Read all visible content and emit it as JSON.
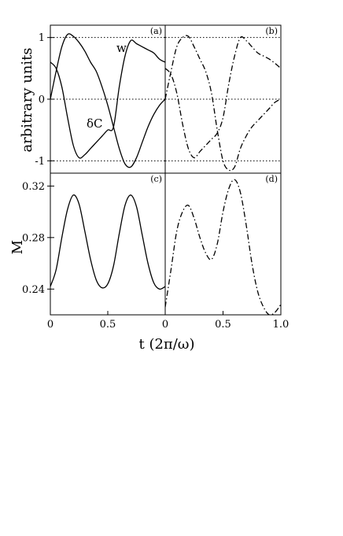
{
  "chart_data": [
    {
      "panel": "(a)",
      "type": "line",
      "ylabel": "arbitrary units",
      "xlim": [
        0,
        1
      ],
      "ylim": [
        -1.2,
        1.2
      ],
      "yticks": [
        "-1",
        "0",
        "1"
      ],
      "reference_lines": [
        1,
        0,
        -1
      ],
      "annotations": [
        "w",
        "δC"
      ],
      "series": [
        {
          "name": "w",
          "style": "solid",
          "x": [
            0,
            0.05,
            0.1,
            0.15,
            0.2,
            0.25,
            0.3,
            0.35,
            0.4,
            0.45,
            0.5,
            0.55,
            0.6,
            0.65,
            0.7,
            0.75,
            0.8,
            0.85,
            0.9,
            0.95,
            1.0
          ],
          "y": [
            0.0,
            0.45,
            0.85,
            1.05,
            1.02,
            0.92,
            0.78,
            0.6,
            0.45,
            0.2,
            -0.1,
            -0.45,
            -0.8,
            -1.05,
            -1.1,
            -0.95,
            -0.7,
            -0.45,
            -0.25,
            -0.1,
            0.0
          ]
        },
        {
          "name": "δC",
          "style": "solid",
          "x": [
            0,
            0.05,
            0.1,
            0.15,
            0.2,
            0.25,
            0.3,
            0.35,
            0.4,
            0.45,
            0.5,
            0.55,
            0.6,
            0.65,
            0.7,
            0.75,
            0.8,
            0.85,
            0.9,
            0.95,
            1.0
          ],
          "y": [
            0.6,
            0.5,
            0.2,
            -0.3,
            -0.75,
            -0.95,
            -0.9,
            -0.8,
            -0.7,
            -0.6,
            -0.5,
            -0.45,
            0.2,
            0.7,
            0.95,
            0.9,
            0.85,
            0.8,
            0.75,
            0.65,
            0.6
          ]
        }
      ]
    },
    {
      "panel": "(b)",
      "type": "line",
      "xlim": [
        0,
        1
      ],
      "ylim": [
        -1.2,
        1.2
      ],
      "reference_lines": [
        1,
        0,
        -1
      ],
      "series": [
        {
          "style": "dashdot",
          "x": [
            0,
            0.05,
            0.1,
            0.15,
            0.2,
            0.25,
            0.3,
            0.35,
            0.4,
            0.45,
            0.5,
            0.55,
            0.6,
            0.65,
            0.7,
            0.75,
            0.8,
            0.85,
            0.9,
            0.95,
            1.0
          ],
          "y": [
            0.0,
            0.45,
            0.85,
            1.0,
            1.02,
            0.85,
            0.65,
            0.45,
            0.1,
            -0.5,
            -1.0,
            -1.15,
            -1.1,
            -0.8,
            -0.6,
            -0.45,
            -0.35,
            -0.25,
            -0.15,
            -0.05,
            0.0
          ]
        },
        {
          "style": "dashdot",
          "x": [
            0,
            0.05,
            0.1,
            0.15,
            0.2,
            0.25,
            0.3,
            0.35,
            0.4,
            0.45,
            0.5,
            0.55,
            0.6,
            0.65,
            0.7,
            0.75,
            0.8,
            0.85,
            0.9,
            0.95,
            1.0
          ],
          "y": [
            0.5,
            0.4,
            0.1,
            -0.4,
            -0.8,
            -0.95,
            -0.85,
            -0.75,
            -0.65,
            -0.55,
            -0.3,
            0.25,
            0.7,
            1.0,
            0.95,
            0.85,
            0.75,
            0.7,
            0.65,
            0.58,
            0.5
          ]
        }
      ]
    },
    {
      "panel": "(c)",
      "type": "line",
      "ylabel": "M",
      "xlabel": "t (2π/ω)",
      "xlim": [
        0,
        1
      ],
      "ylim": [
        0.22,
        0.33
      ],
      "yticks": [
        "0.24",
        "0.28",
        "0.32"
      ],
      "xticks": [
        "0",
        "0.5",
        "1.0"
      ],
      "series": [
        {
          "style": "solid",
          "x": [
            0,
            0.05,
            0.1,
            0.15,
            0.2,
            0.25,
            0.3,
            0.35,
            0.4,
            0.45,
            0.5,
            0.55,
            0.6,
            0.65,
            0.7,
            0.75,
            0.8,
            0.85,
            0.9,
            0.95,
            1.0
          ],
          "y": [
            0.242,
            0.255,
            0.28,
            0.302,
            0.313,
            0.306,
            0.285,
            0.263,
            0.247,
            0.241,
            0.244,
            0.258,
            0.283,
            0.305,
            0.313,
            0.304,
            0.282,
            0.26,
            0.245,
            0.24,
            0.242
          ]
        }
      ]
    },
    {
      "panel": "(d)",
      "type": "line",
      "xlim": [
        0,
        1
      ],
      "ylim": [
        0.22,
        0.33
      ],
      "xticks": [
        "0",
        "0.5",
        "1.0"
      ],
      "series": [
        {
          "style": "dashdot",
          "x": [
            0,
            0.05,
            0.1,
            0.15,
            0.2,
            0.25,
            0.3,
            0.35,
            0.4,
            0.45,
            0.5,
            0.55,
            0.6,
            0.65,
            0.7,
            0.75,
            0.8,
            0.85,
            0.9,
            0.95,
            1.0
          ],
          "y": [
            0.226,
            0.255,
            0.285,
            0.3,
            0.305,
            0.295,
            0.28,
            0.268,
            0.263,
            0.275,
            0.3,
            0.318,
            0.325,
            0.315,
            0.29,
            0.26,
            0.238,
            0.226,
            0.22,
            0.222,
            0.228
          ]
        }
      ]
    }
  ]
}
